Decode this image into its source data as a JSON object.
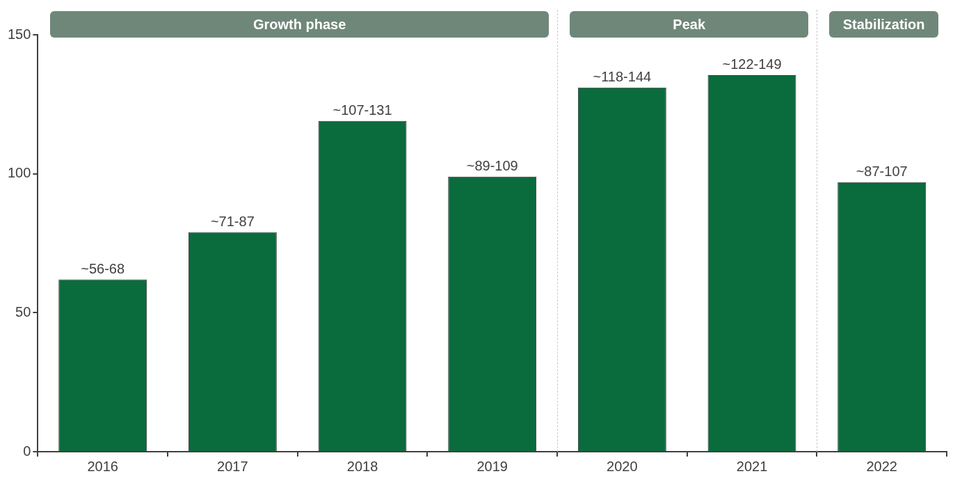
{
  "chart_data": {
    "type": "bar",
    "categories": [
      "2016",
      "2017",
      "2018",
      "2019",
      "2020",
      "2021",
      "2022"
    ],
    "values": [
      62,
      79,
      119,
      99,
      131,
      135.5,
      97
    ],
    "value_labels": [
      "~56-68",
      "~71-87",
      "~107-131",
      "~89-109",
      "~118-144",
      "~122-149",
      "~87-107"
    ],
    "color": "#0a6b3c",
    "ylim": [
      0,
      150
    ],
    "yticks": [
      0,
      50,
      100,
      150
    ],
    "grid": false,
    "legend": false,
    "annotations": [
      "Growth phase",
      "Peak",
      "Stabilization"
    ]
  }
}
